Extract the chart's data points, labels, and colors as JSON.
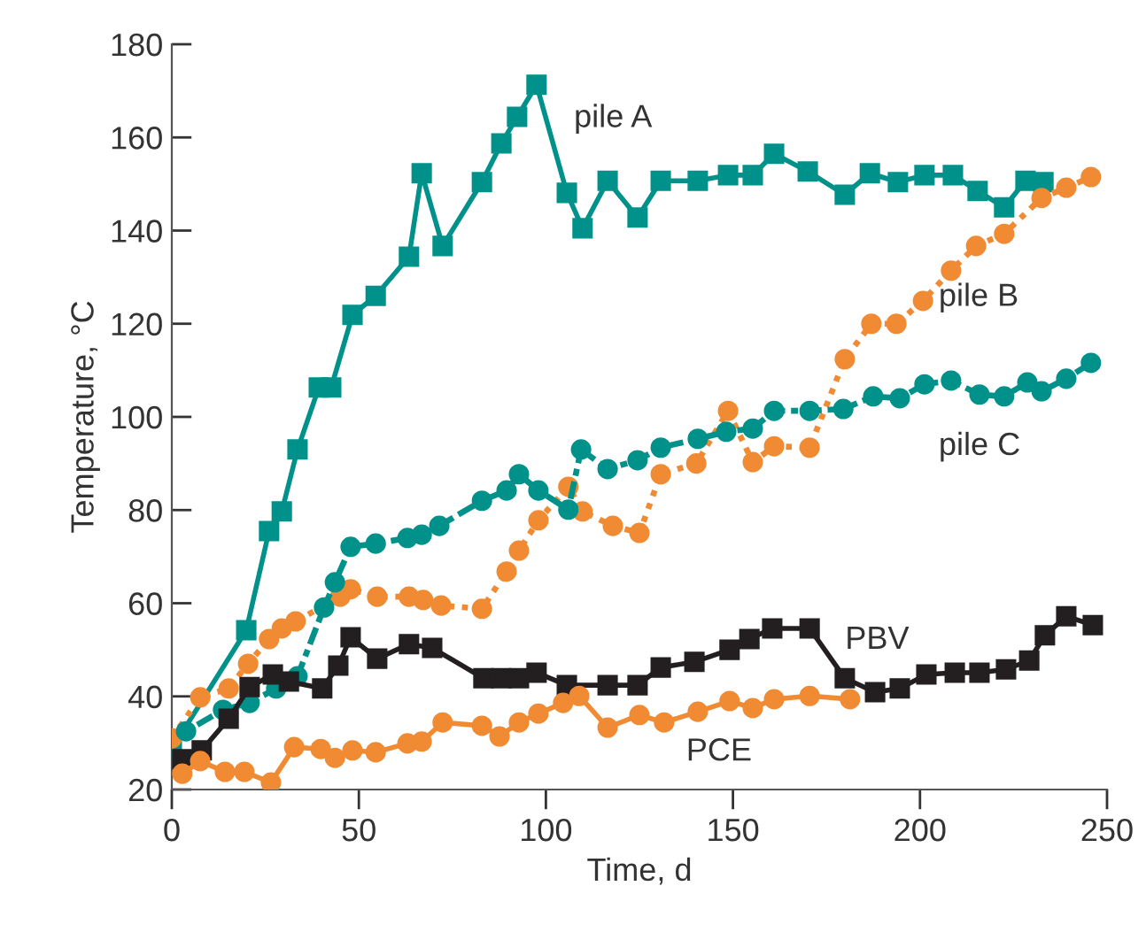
{
  "chart_data": {
    "type": "line",
    "xlabel": "Time, d",
    "ylabel": "Temperature, °C",
    "xlim": [
      0,
      250
    ],
    "xticks": [
      0,
      50,
      100,
      150,
      200,
      250
    ],
    "ylim": [
      20,
      180
    ],
    "yticks": [
      20,
      40,
      60,
      80,
      100,
      120,
      140,
      160,
      180
    ],
    "grid": false,
    "legend": false,
    "series": [
      {
        "name": "pile A",
        "color": "#00918a",
        "marker": "square",
        "line_style": "solid",
        "x": [
          0,
          19.9,
          26.0,
          29.4,
          33.6,
          39.3,
          42.6,
          48.3,
          54.5,
          63.4,
          66.8,
          72.4,
          82.9,
          88.1,
          92.3,
          97.5,
          105.6,
          109.8,
          116.5,
          124.5,
          130.7,
          140.6,
          148.7,
          155.3,
          161.0,
          170.0,
          179.9,
          186.6,
          194.1,
          201.2,
          208.8,
          215.4,
          222.5,
          228.2,
          233.0
        ],
        "values": [
          28.7,
          54.2,
          75.5,
          79.7,
          93.0,
          106.3,
          106.3,
          121.9,
          126.0,
          134.4,
          152.3,
          136.7,
          150.4,
          158.7,
          164.4,
          171.3,
          148.1,
          140.5,
          150.7,
          142.8,
          150.7,
          150.7,
          151.9,
          151.9,
          156.5,
          152.7,
          147.7,
          152.3,
          150.4,
          151.9,
          151.9,
          148.5,
          145.0,
          150.7,
          150.4
        ]
      },
      {
        "name": "pile B",
        "color": "#f08a33",
        "marker": "circle",
        "line_style": "dotted",
        "x": [
          0,
          7.6,
          15.2,
          20.4,
          26.0,
          29.4,
          33.1,
          45.0,
          47.8,
          54.9,
          63.4,
          67.2,
          72.0,
          82.9,
          89.5,
          92.8,
          98.0,
          106.0,
          109.8,
          117.9,
          125.0,
          130.7,
          140.2,
          148.7,
          155.3,
          161.0,
          170.5,
          179.9,
          187.0,
          193.7,
          200.8,
          208.3,
          215.0,
          222.5,
          232.5,
          239.1,
          245.7
        ],
        "values": [
          31.0,
          39.8,
          41.7,
          47.0,
          52.3,
          54.6,
          56.1,
          61.4,
          63.0,
          61.4,
          61.4,
          60.7,
          59.5,
          58.8,
          66.8,
          71.3,
          77.8,
          85.0,
          79.7,
          76.6,
          75.1,
          87.7,
          90.0,
          101.3,
          90.3,
          93.7,
          93.4,
          112.4,
          120.0,
          120.0,
          124.9,
          131.4,
          136.7,
          139.3,
          147.0,
          149.2,
          151.5
        ]
      },
      {
        "name": "pile C",
        "color": "#00918a",
        "marker": "circle",
        "line_style": "dashed",
        "x": [
          3.8,
          13.7,
          20.8,
          27.9,
          33.6,
          40.7,
          43.6,
          47.8,
          54.5,
          63.0,
          66.8,
          71.5,
          82.9,
          89.5,
          92.8,
          98.0,
          106.0,
          109.4,
          116.5,
          124.5,
          130.7,
          140.6,
          148.2,
          155.3,
          161.0,
          170.5,
          179.5,
          187.5,
          194.6,
          201.2,
          208.3,
          215.9,
          222.5,
          228.7,
          232.5,
          239.1,
          245.7
        ],
        "values": [
          32.5,
          37.1,
          38.6,
          41.7,
          44.3,
          59.1,
          64.5,
          72.1,
          72.8,
          74.0,
          74.7,
          76.6,
          82.0,
          84.2,
          87.7,
          84.2,
          80.1,
          93.0,
          88.8,
          90.7,
          93.4,
          95.3,
          96.8,
          97.5,
          101.3,
          101.3,
          101.7,
          104.4,
          104.0,
          107.0,
          107.8,
          104.8,
          104.4,
          107.4,
          105.5,
          108.2,
          111.6
        ]
      },
      {
        "name": "PBV",
        "color": "#231f20",
        "marker": "square",
        "line_style": "solid",
        "x": [
          2.8,
          8.0,
          15.2,
          20.8,
          27.0,
          31.3,
          40.2,
          44.5,
          47.8,
          54.9,
          63.4,
          69.6,
          83.3,
          88.1,
          92.8,
          97.5,
          105.6,
          116.5,
          124.5,
          130.7,
          139.7,
          149.1,
          154.4,
          160.5,
          170.5,
          179.9,
          188.0,
          194.6,
          201.7,
          209.3,
          215.9,
          223.0,
          229.2,
          233.4,
          239.1,
          246.2
        ],
        "values": [
          26.5,
          28.4,
          35.2,
          42.0,
          44.7,
          43.2,
          41.7,
          46.6,
          52.7,
          48.1,
          51.2,
          50.4,
          43.9,
          43.9,
          43.9,
          45.1,
          42.4,
          42.4,
          42.4,
          46.2,
          47.4,
          50.0,
          52.3,
          54.6,
          54.6,
          43.9,
          40.9,
          41.7,
          44.7,
          45.1,
          45.1,
          45.8,
          47.7,
          53.1,
          57.2,
          55.3
        ]
      },
      {
        "name": "PCE",
        "color": "#f08a33",
        "marker": "circle",
        "line_style": "solid",
        "x": [
          2.8,
          7.6,
          14.2,
          19.4,
          26.5,
          32.7,
          39.8,
          43.6,
          48.3,
          54.5,
          63.0,
          66.8,
          72.4,
          82.9,
          87.6,
          92.8,
          98.0,
          104.6,
          108.9,
          116.5,
          125.0,
          131.6,
          140.6,
          149.1,
          155.3,
          161.0,
          170.5,
          181.3
        ],
        "values": [
          23.4,
          26.1,
          23.8,
          23.8,
          21.5,
          29.1,
          28.7,
          26.8,
          28.4,
          28.0,
          29.9,
          30.3,
          34.4,
          33.7,
          31.4,
          34.4,
          36.3,
          38.6,
          40.1,
          33.3,
          36.0,
          34.4,
          36.7,
          39.0,
          37.5,
          39.4,
          40.1,
          39.4
        ]
      }
    ]
  }
}
